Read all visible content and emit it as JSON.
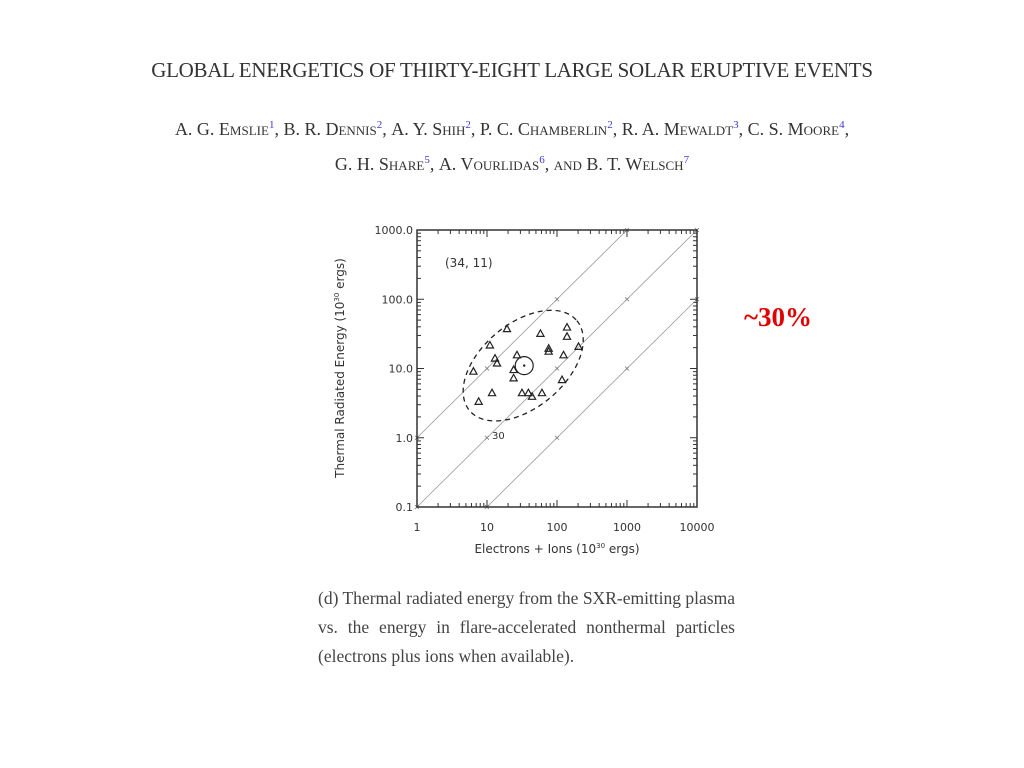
{
  "paper": {
    "title": "GLOBAL ENERGETICS OF THIRTY-EIGHT LARGE SOLAR ERUPTIVE EVENTS",
    "authors_line1": [
      {
        "name": "A. G. Emslie",
        "sup": "1"
      },
      {
        "name": "B. R. Dennis",
        "sup": "2"
      },
      {
        "name": "A. Y. Shih",
        "sup": "2"
      },
      {
        "name": "P. C. Chamberlin",
        "sup": "2"
      },
      {
        "name": "R. A. Mewaldt",
        "sup": "3"
      },
      {
        "name": "C. S. Moore",
        "sup": "4"
      }
    ],
    "authors_line2": [
      {
        "name": "G. H. Share",
        "sup": "5"
      },
      {
        "name": "A. Vourlidas",
        "sup": "6"
      }
    ],
    "and_word": "and",
    "last_author": {
      "name": "B. T. Welsch",
      "sup": "7"
    },
    "caption": "(d) Thermal radiated energy from the SXR-emitting plasma vs. the energy in flare-accelerated nonthermal particles (electrons plus ions when available)."
  },
  "annotation": {
    "text": "~30%",
    "color": "#e00000"
  },
  "chart_data": {
    "type": "scatter",
    "xlabel": "Electrons + Ions (10^30 ergs)",
    "ylabel": "Thermal Radiated Energy (10^30 ergs)",
    "xlabel_main": "Electrons + Ions (10",
    "xlabel_exp": "30",
    "xlabel_end": " ergs)",
    "ylabel_main": "Thermal Radiated Energy (10",
    "ylabel_exp": "30",
    "ylabel_end": " ergs)",
    "xscale": "log",
    "yscale": "log",
    "xlim": [
      1,
      10000
    ],
    "ylim": [
      0.1,
      1000
    ],
    "xticks": [
      "1",
      "10",
      "100",
      "1000",
      "10000"
    ],
    "yticks": [
      "0.1",
      "1.0",
      "10.0",
      "100.0",
      "1000.0"
    ],
    "mean_label": "(34, 11)",
    "mean": {
      "x": 34,
      "y": 11
    },
    "ellipse_label": "30",
    "reference_lines": [
      {
        "ratio": 1
      },
      {
        "ratio": 0.1
      },
      {
        "ratio": 0.01
      }
    ],
    "points": [
      {
        "x": 6.4,
        "y": 9.0
      },
      {
        "x": 7.6,
        "y": 3.3
      },
      {
        "x": 11,
        "y": 21.5
      },
      {
        "x": 11.8,
        "y": 4.4
      },
      {
        "x": 13,
        "y": 13.9
      },
      {
        "x": 13.9,
        "y": 11.8
      },
      {
        "x": 19.3,
        "y": 37
      },
      {
        "x": 24,
        "y": 9.5
      },
      {
        "x": 26.8,
        "y": 15.5
      },
      {
        "x": 24,
        "y": 7.2
      },
      {
        "x": 31.6,
        "y": 4.4
      },
      {
        "x": 39,
        "y": 4.4
      },
      {
        "x": 44,
        "y": 3.9
      },
      {
        "x": 61,
        "y": 4.4
      },
      {
        "x": 58,
        "y": 31.6
      },
      {
        "x": 76,
        "y": 19.3
      },
      {
        "x": 76,
        "y": 17.5
      },
      {
        "x": 124,
        "y": 15.5
      },
      {
        "x": 118,
        "y": 6.8
      },
      {
        "x": 139,
        "y": 39
      },
      {
        "x": 139,
        "y": 28.7
      },
      {
        "x": 203,
        "y": 20.5
      }
    ]
  }
}
